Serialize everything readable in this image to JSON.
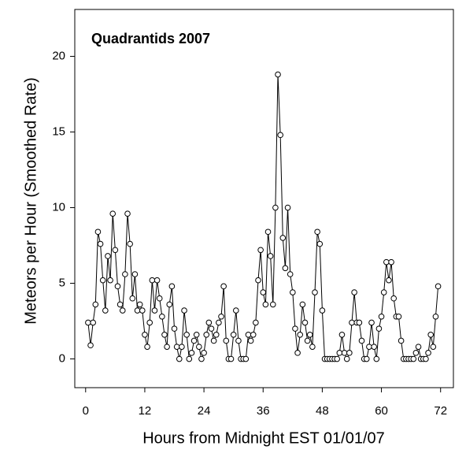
{
  "chart_data": {
    "type": "line",
    "title": "Quadrantids 2007",
    "x_label": "Hours from Midnight EST 01/01/07",
    "y_label": "Meteors per Hour (Smoothed Rate)",
    "x": [
      0.5,
      1,
      1.5,
      2,
      2.5,
      3,
      3.5,
      4,
      4.5,
      5,
      5.5,
      6,
      6.5,
      7,
      7.5,
      8,
      8.5,
      9,
      9.5,
      10,
      10.5,
      11,
      11.5,
      12,
      12.5,
      13,
      13.5,
      14,
      14.5,
      15,
      15.5,
      16,
      16.5,
      17,
      17.5,
      18,
      18.5,
      19,
      19.5,
      20,
      20.5,
      21,
      21.5,
      22,
      22.5,
      23,
      23.5,
      24,
      24.5,
      25,
      25.5,
      26,
      26.5,
      27,
      27.5,
      28,
      28.5,
      29,
      29.5,
      30,
      30.5,
      31,
      31.5,
      32,
      32.5,
      33,
      33.5,
      34,
      34.5,
      35,
      35.5,
      36,
      36.5,
      37,
      37.5,
      38,
      38.5,
      39,
      39.5,
      40,
      40.5,
      41,
      41.5,
      42,
      42.5,
      43,
      43.5,
      44,
      44.5,
      45,
      45.5,
      46,
      46.5,
      47,
      47.5,
      48,
      48.5,
      49,
      49.5,
      50,
      50.5,
      51,
      51.5,
      52,
      52.5,
      53,
      53.5,
      54,
      54.5,
      55,
      55.5,
      56,
      56.5,
      57,
      57.5,
      58,
      58.5,
      59,
      59.5,
      60,
      60.5,
      61,
      61.5,
      62,
      62.5,
      63,
      63.5,
      64,
      64.5,
      65,
      65.5,
      66,
      66.5,
      67,
      67.5,
      68,
      68.5,
      69,
      69.5,
      70,
      70.5,
      71,
      71.5
    ],
    "series": [
      {
        "name": "Smoothed Rate",
        "color": "#000000",
        "values": [
          2.4,
          0.9,
          2.4,
          3.6,
          8.4,
          7.6,
          5.2,
          3.2,
          6.8,
          5.2,
          9.6,
          7.2,
          4.8,
          3.6,
          3.2,
          5.6,
          9.6,
          7.6,
          4.0,
          5.6,
          3.2,
          3.6,
          3.2,
          1.6,
          0.8,
          2.4,
          5.2,
          3.2,
          5.2,
          4.0,
          2.8,
          1.6,
          0.8,
          3.6,
          4.8,
          2.0,
          0.8,
          0,
          0.8,
          3.2,
          1.6,
          0,
          0.4,
          1.2,
          1.6,
          0.8,
          0,
          0.4,
          1.6,
          2.4,
          2.0,
          1.2,
          1.6,
          2.4,
          2.8,
          4.8,
          1.2,
          0,
          0,
          1.6,
          3.2,
          1.2,
          0,
          0,
          0,
          1.6,
          1.2,
          1.6,
          2.4,
          5.2,
          7.2,
          4.4,
          3.6,
          8.4,
          6.8,
          3.6,
          10.0,
          18.8,
          14.8,
          8.0,
          6.0,
          10.0,
          5.6,
          4.4,
          2.0,
          0.4,
          1.6,
          3.6,
          2.4,
          1.2,
          1.6,
          0.8,
          4.4,
          8.4,
          7.6,
          3.2,
          0,
          0,
          0,
          0,
          0,
          0,
          0.4,
          1.6,
          0.4,
          0,
          0.4,
          2.4,
          4.4,
          2.4,
          2.4,
          1.2,
          0,
          0,
          0.8,
          2.4,
          0.8,
          0,
          2.0,
          2.8,
          4.4,
          6.4,
          5.2,
          6.4,
          4.0,
          2.8,
          2.8,
          1.2,
          0,
          0,
          0,
          0,
          0,
          0.4,
          0.8,
          0,
          0,
          0,
          0.4,
          1.6,
          0.8,
          2.8,
          4.8
        ]
      }
    ],
    "xlim": [
      -2.2,
      74.6
    ],
    "ylim": [
      -1.9,
      23.1
    ],
    "xticks": [
      0,
      12,
      24,
      36,
      48,
      60,
      72
    ],
    "yticks": [
      0,
      5,
      10,
      15,
      20
    ]
  }
}
